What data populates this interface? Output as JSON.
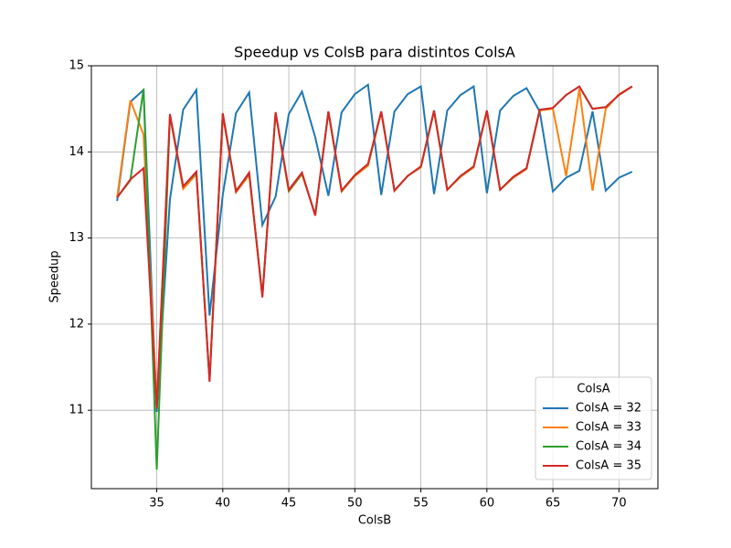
{
  "chart_data": {
    "type": "line",
    "title": "Speedup vs ColsB para distintos ColsA",
    "xlabel": "ColsB",
    "ylabel": "Speedup",
    "legend_title": "ColsA",
    "legend": "lower right",
    "grid": true,
    "x": [
      32,
      33,
      34,
      35,
      36,
      37,
      38,
      39,
      40,
      41,
      42,
      43,
      44,
      45,
      46,
      47,
      48,
      49,
      50,
      51,
      52,
      53,
      54,
      55,
      56,
      57,
      58,
      59,
      60,
      61,
      62,
      63,
      64,
      65,
      66,
      67,
      68,
      69,
      70,
      71
    ],
    "series": [
      {
        "name": "ColsA = 32",
        "color": "#1f77b4",
        "values": [
          13.43,
          14.58,
          14.72,
          10.98,
          13.45,
          14.49,
          14.72,
          12.1,
          13.5,
          14.45,
          14.69,
          13.15,
          13.48,
          14.44,
          14.7,
          14.17,
          13.49,
          14.46,
          14.67,
          14.78,
          13.5,
          14.47,
          14.67,
          14.76,
          13.51,
          14.48,
          14.66,
          14.76,
          13.52,
          14.48,
          14.65,
          14.74,
          14.47,
          13.54,
          13.7,
          13.78,
          14.47,
          13.55,
          13.7,
          13.77
        ]
      },
      {
        "name": "ColsA = 33",
        "color": "#ff7f0e",
        "values": [
          13.47,
          14.6,
          14.2,
          11.05,
          14.42,
          13.57,
          13.74,
          11.35,
          14.43,
          13.53,
          13.73,
          12.33,
          14.45,
          13.54,
          13.74,
          13.27,
          14.46,
          13.54,
          13.72,
          13.84,
          14.46,
          13.55,
          13.72,
          13.82,
          14.47,
          13.56,
          13.71,
          13.82,
          14.47,
          13.56,
          13.7,
          13.8,
          14.48,
          14.5,
          13.72,
          14.73,
          13.55,
          14.5,
          14.67,
          14.76
        ]
      },
      {
        "name": "ColsA = 34",
        "color": "#2ca02c",
        "values": [
          13.47,
          13.67,
          14.73,
          10.31,
          14.42,
          13.6,
          13.76,
          11.35,
          14.44,
          13.55,
          13.75,
          12.33,
          14.46,
          13.55,
          13.75,
          13.27,
          14.47,
          13.55,
          13.73,
          13.86,
          14.47,
          13.55,
          13.72,
          13.83,
          14.48,
          13.56,
          13.72,
          13.83,
          14.48,
          13.56,
          13.71,
          13.81,
          14.49,
          14.51,
          14.66,
          14.76,
          14.5,
          14.52,
          14.66,
          14.76
        ]
      },
      {
        "name": "ColsA = 35",
        "color": "#d62728",
        "values": [
          13.47,
          13.68,
          13.81,
          11.02,
          14.44,
          13.6,
          13.77,
          11.33,
          14.45,
          13.54,
          13.76,
          12.31,
          14.46,
          13.56,
          13.76,
          13.26,
          14.47,
          13.55,
          13.73,
          13.86,
          14.47,
          13.55,
          13.72,
          13.83,
          14.48,
          13.56,
          13.72,
          13.83,
          14.48,
          13.56,
          13.71,
          13.81,
          14.49,
          14.51,
          14.66,
          14.76,
          14.5,
          14.52,
          14.66,
          14.76
        ]
      }
    ],
    "xlim": [
      30.05,
      72.95
    ],
    "xticks": [
      35,
      40,
      45,
      50,
      55,
      60,
      65,
      70
    ],
    "ylim": [
      10.09,
      15.0
    ],
    "yticks": [
      11,
      12,
      13,
      14,
      15
    ]
  }
}
